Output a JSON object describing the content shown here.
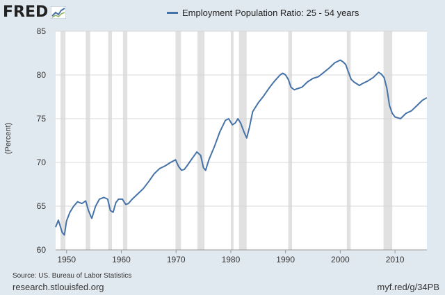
{
  "brand": {
    "logo_text": "FRED",
    "logo_icon": "fred-graph-icon"
  },
  "colors": {
    "background": "#e1e9f0",
    "plot_bg": "#ffffff",
    "line": "#4572a7",
    "recession": "#e1e1e1"
  },
  "footer": {
    "source": "Source: US. Bureau of Labor Statistics",
    "site": "research.stlouisfed.org",
    "shortlink": "myf.red/g/34PB"
  },
  "chart_data": {
    "type": "line",
    "title": "",
    "xlabel": "",
    "ylabel": "(Percent)",
    "legend": "top-center",
    "grid": true,
    "xlim": [
      1948.0,
      2015.83
    ],
    "ylim": [
      60,
      85
    ],
    "x_ticks": [
      1950,
      1960,
      1970,
      1980,
      1990,
      2000,
      2010
    ],
    "x_tick_labels": [
      "1950",
      "1960",
      "1970",
      "1980",
      "1990",
      "2000",
      "2010"
    ],
    "y_ticks": [
      60,
      65,
      70,
      75,
      80,
      85
    ],
    "y_tick_labels": [
      "60",
      "65",
      "70",
      "75",
      "80",
      "85"
    ],
    "recessions": [
      [
        1948.9,
        1949.8
      ],
      [
        1953.5,
        1954.3
      ],
      [
        1957.6,
        1958.3
      ],
      [
        1960.3,
        1961.1
      ],
      [
        1969.9,
        1970.9
      ],
      [
        1973.9,
        1975.2
      ],
      [
        1980.0,
        1980.5
      ],
      [
        1981.5,
        1982.9
      ],
      [
        1990.5,
        1991.2
      ],
      [
        2001.2,
        2001.9
      ],
      [
        2007.9,
        2009.5
      ]
    ],
    "series": [
      {
        "name": "Employment Population Ratio: 25 - 54 years",
        "x": [
          1948.0,
          1948.5,
          1948.8,
          1949.2,
          1949.6,
          1950.0,
          1950.6,
          1951.3,
          1952.0,
          1952.8,
          1953.5,
          1954.0,
          1954.6,
          1955.3,
          1956.0,
          1956.8,
          1957.5,
          1958.0,
          1958.5,
          1959.0,
          1959.5,
          1960.2,
          1960.8,
          1961.3,
          1962.0,
          1963.0,
          1964.0,
          1965.0,
          1966.0,
          1967.0,
          1968.0,
          1969.0,
          1969.9,
          1970.5,
          1971.0,
          1971.5,
          1972.0,
          1973.0,
          1973.8,
          1974.5,
          1975.0,
          1975.4,
          1976.0,
          1977.0,
          1978.0,
          1979.0,
          1979.6,
          1980.3,
          1980.8,
          1981.3,
          1981.8,
          1982.4,
          1982.9,
          1983.4,
          1984.0,
          1985.0,
          1986.0,
          1987.0,
          1988.0,
          1989.0,
          1989.5,
          1990.0,
          1990.5,
          1991.0,
          1991.6,
          1992.0,
          1993.0,
          1994.0,
          1995.0,
          1996.0,
          1997.0,
          1998.0,
          1999.0,
          2000.0,
          2000.5,
          2001.0,
          2001.5,
          2002.0,
          2002.5,
          2003.0,
          2003.5,
          2004.0,
          2005.0,
          2006.0,
          2007.0,
          2007.5,
          2008.0,
          2008.5,
          2009.0,
          2009.5,
          2010.0,
          2010.5,
          2011.0,
          2012.0,
          2013.0,
          2014.0,
          2015.0,
          2015.8
        ],
        "values": [
          62.6,
          63.4,
          62.8,
          62.0,
          61.7,
          63.3,
          64.3,
          65.0,
          65.5,
          65.3,
          65.6,
          64.5,
          63.6,
          65.0,
          65.8,
          66.0,
          65.8,
          64.5,
          64.3,
          65.4,
          65.8,
          65.8,
          65.2,
          65.3,
          65.8,
          66.4,
          67.0,
          67.8,
          68.7,
          69.3,
          69.6,
          70.0,
          70.3,
          69.5,
          69.1,
          69.2,
          69.6,
          70.5,
          71.2,
          70.8,
          69.4,
          69.1,
          70.3,
          71.8,
          73.5,
          74.8,
          75.0,
          74.3,
          74.5,
          75.0,
          74.5,
          73.5,
          72.8,
          74.0,
          75.8,
          76.8,
          77.6,
          78.5,
          79.3,
          80.0,
          80.2,
          80.0,
          79.5,
          78.6,
          78.3,
          78.4,
          78.6,
          79.2,
          79.6,
          79.8,
          80.3,
          80.8,
          81.4,
          81.7,
          81.5,
          81.2,
          80.3,
          79.5,
          79.2,
          79.0,
          78.8,
          79.0,
          79.3,
          79.7,
          80.3,
          80.1,
          79.7,
          78.5,
          76.5,
          75.6,
          75.2,
          75.1,
          75.0,
          75.6,
          75.9,
          76.5,
          77.1,
          77.4
        ]
      }
    ]
  }
}
